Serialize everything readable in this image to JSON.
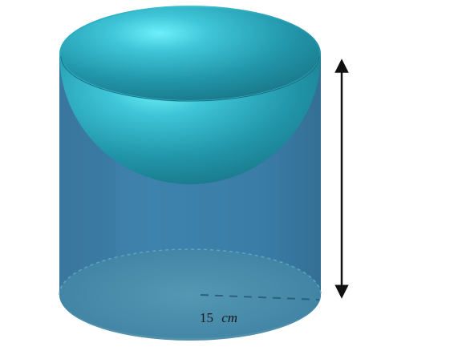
{
  "figure": {
    "radius_label": {
      "value": "15",
      "unit": "cm"
    },
    "colors": {
      "cylinder_body": "#3a7fa6",
      "cylinder_dark": "#2f6d93",
      "rim_top": "#2fb5c9",
      "hemisphere_light": "#6fe8f6",
      "hemisphere_dark": "#1d7f8f",
      "base_ellipse": "#4b8eab",
      "arrow": "#111111",
      "radius_dash": "#2d5f80"
    },
    "shapes": {
      "solid": "cylinder-with-hemispherical-cavity",
      "arrow": "double-headed-height-arrow",
      "radius_line": "dashed"
    }
  }
}
